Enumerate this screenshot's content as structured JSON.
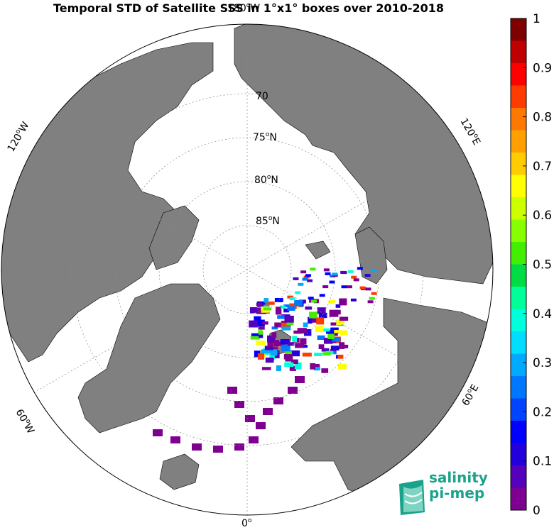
{
  "title": "Temporal STD of Satellite SSS in 1°x1° boxes over 2010-2018",
  "map": {
    "projection": "north-polar-stereographic",
    "lat_labels": [
      {
        "text": "70",
        "sup": "",
        "unit": ""
      },
      {
        "text": "75",
        "sup": "o",
        "unit": "N"
      },
      {
        "text": "80",
        "sup": "o",
        "unit": "N"
      },
      {
        "text": "85",
        "sup": "o",
        "unit": "N"
      }
    ],
    "lon_labels": [
      {
        "text": "0",
        "sup": "o",
        "unit": ""
      },
      {
        "text": "180",
        "sup": "o",
        "unit": "W"
      },
      {
        "text": "60",
        "sup": "o",
        "unit": "W"
      },
      {
        "text": "120",
        "sup": "o",
        "unit": "W"
      },
      {
        "text": "60",
        "sup": "o",
        "unit": "E"
      },
      {
        "text": "120",
        "sup": "o",
        "unit": "E"
      }
    ],
    "land_color": "#808080",
    "ocean_color": "#ffffff"
  },
  "colorbar": {
    "ticks": [
      "1",
      "0.9",
      "0.8",
      "0.7",
      "0.6",
      "0.5",
      "0.4",
      "0.3",
      "0.2",
      "0.1",
      "0"
    ],
    "min": 0,
    "max": 1,
    "colors": [
      "#7f0000",
      "#c00000",
      "#ff0000",
      "#ff3c00",
      "#ff7800",
      "#ffa000",
      "#ffcc00",
      "#ffff00",
      "#ccff00",
      "#88ff00",
      "#44ee00",
      "#00dd44",
      "#00ff99",
      "#00ffdd",
      "#00ddff",
      "#00aaff",
      "#0077ff",
      "#0044ff",
      "#0000ff",
      "#2200dd",
      "#5500bb",
      "#7f0090"
    ]
  },
  "logo": {
    "line1": "salinity",
    "line2": "pi-mep",
    "color": "#1aa38a"
  }
}
